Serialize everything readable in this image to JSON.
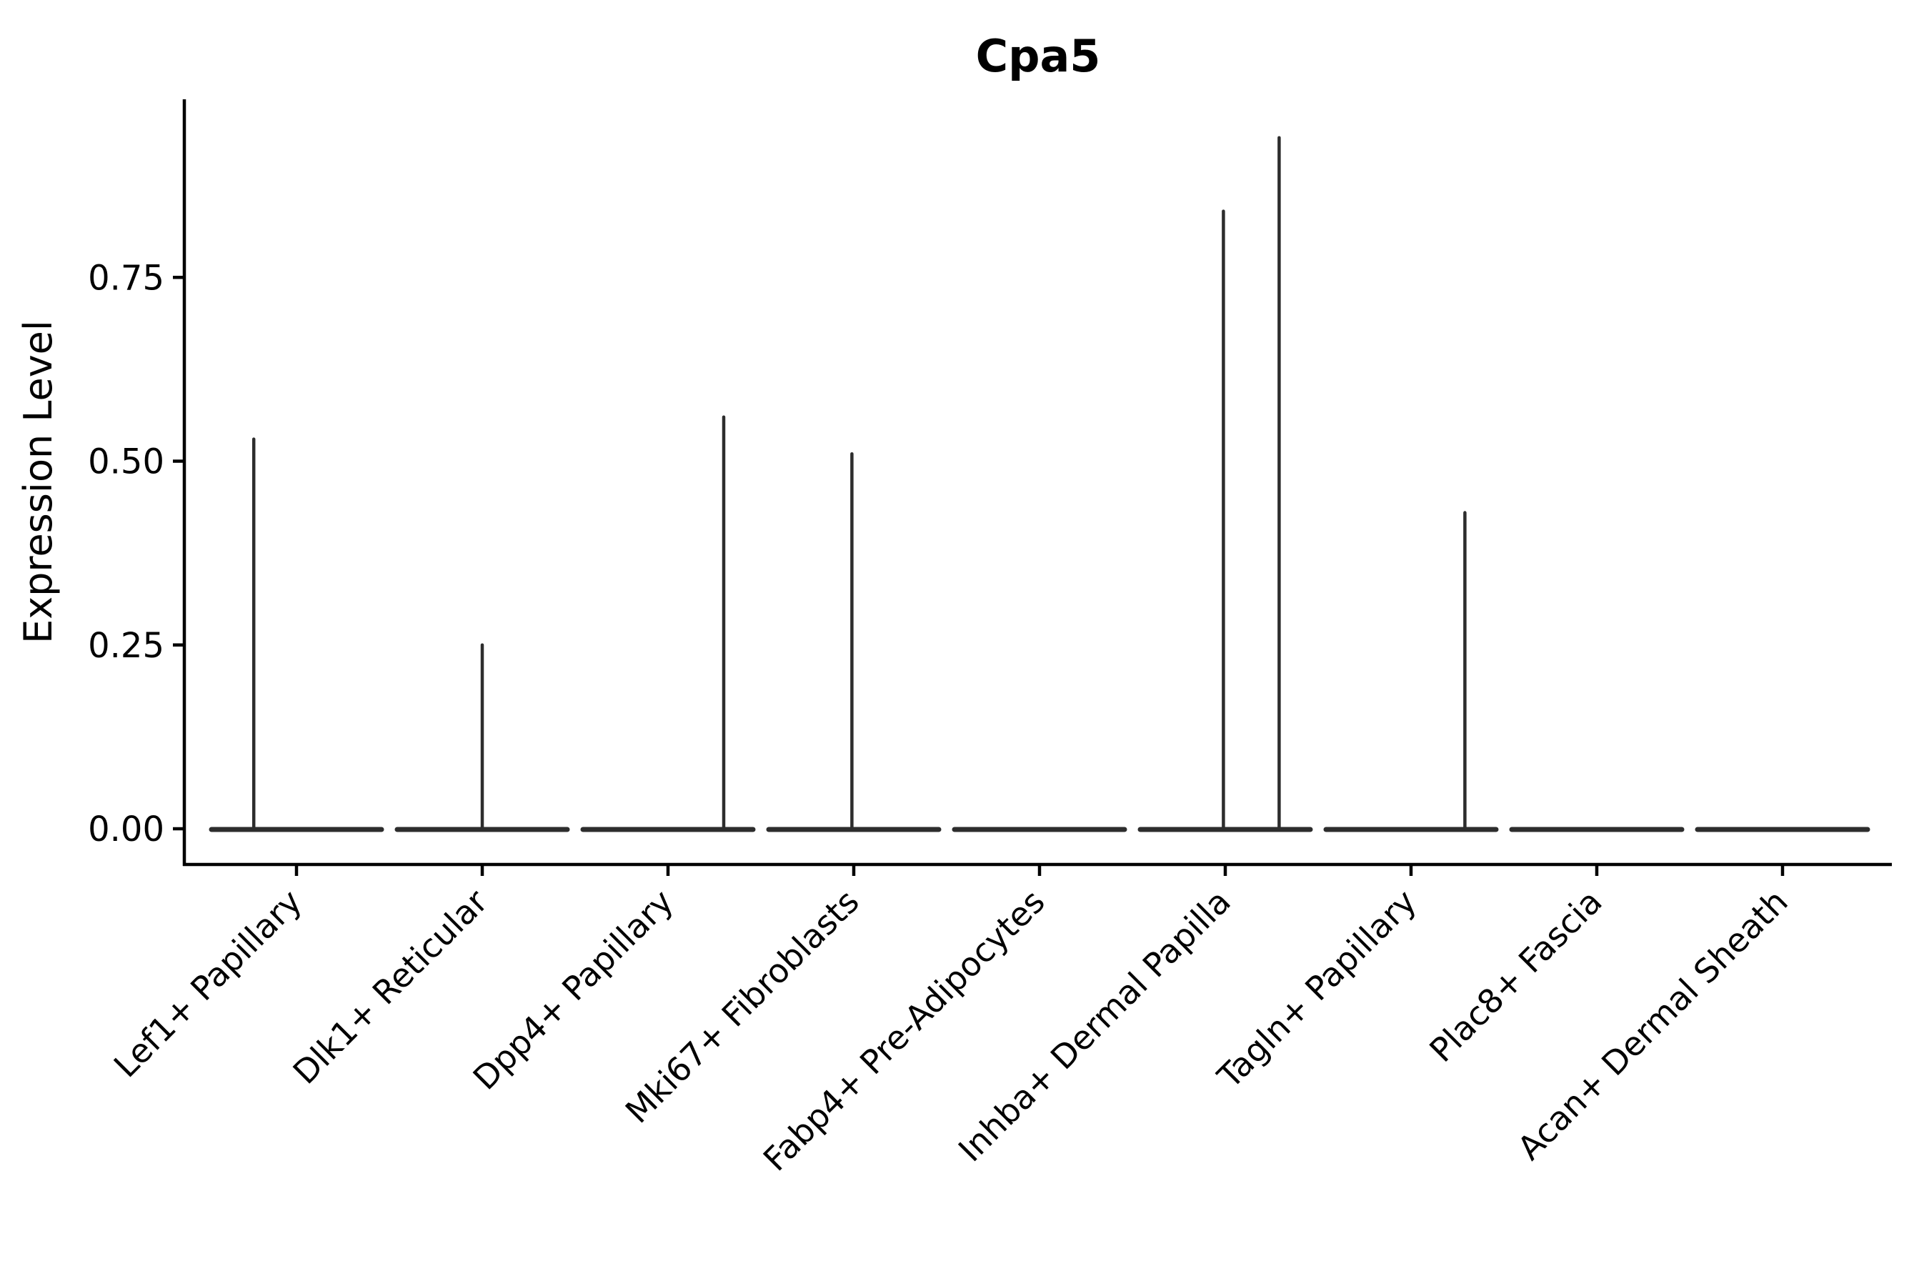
{
  "figure": {
    "title": "Cpa5",
    "y_axis_title": "Expression Level"
  },
  "chart_data": {
    "type": "violin",
    "title": "Cpa5",
    "xlabel": "",
    "ylabel": "Expression Level",
    "ylim": [
      -0.05,
      0.99
    ],
    "yticks": [
      0.0,
      0.25,
      0.5,
      0.75
    ],
    "ytick_labels": [
      "0.00",
      "0.25",
      "0.50",
      "0.75"
    ],
    "grid": "off",
    "legend": "none",
    "x_tick_angle_deg": 45,
    "categories": [
      "Lef1+ Papillary",
      "Dlk1+ Reticular",
      "Dpp4+ Papillary",
      "Mki67+ Fibroblasts",
      "Fabp4+ Pre-Adipocytes",
      "Inhba+ Dermal Papilla",
      "Tagln+ Papillary",
      "Plac8+ Fascia",
      "Acan+ Dermal Sheath"
    ],
    "violins": [
      {
        "label": "Lef1+ Papillary",
        "baseline_value": 0,
        "spikes": [
          {
            "value": 0.53,
            "x_offset_frac": -0.23
          }
        ]
      },
      {
        "label": "Dlk1+ Reticular",
        "baseline_value": 0,
        "spikes": [
          {
            "value": 0.25,
            "x_offset_frac": 0.0
          }
        ]
      },
      {
        "label": "Dpp4+ Papillary",
        "baseline_value": 0,
        "spikes": [
          {
            "value": 0.56,
            "x_offset_frac": 0.3
          }
        ]
      },
      {
        "label": "Mki67+ Fibroblasts",
        "baseline_value": 0,
        "spikes": [
          {
            "value": 0.51,
            "x_offset_frac": -0.01
          }
        ]
      },
      {
        "label": "Fabp4+ Pre-Adipocytes",
        "baseline_value": 0,
        "spikes": []
      },
      {
        "label": "Inhba+ Dermal Papilla",
        "baseline_value": 0,
        "spikes": [
          {
            "value": 0.84,
            "x_offset_frac": -0.01
          },
          {
            "value": 0.94,
            "x_offset_frac": 0.29
          }
        ]
      },
      {
        "label": "Tagln+ Papillary",
        "baseline_value": 0,
        "spikes": [
          {
            "value": 0.43,
            "x_offset_frac": 0.29
          }
        ]
      },
      {
        "label": "Plac8+ Fascia",
        "baseline_value": 0,
        "spikes": []
      },
      {
        "label": "Acan+ Dermal Sheath",
        "baseline_value": 0,
        "spikes": []
      }
    ]
  },
  "colors": {
    "background": "#ffffff",
    "axis": "#000000",
    "violin_stroke": "#2d2d2d",
    "text": "#000000"
  }
}
